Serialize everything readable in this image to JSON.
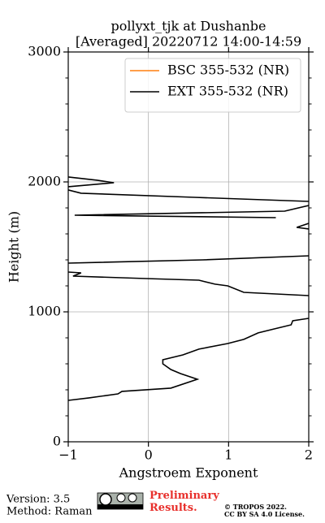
{
  "chart_data": {
    "type": "line",
    "title": "pollyxt_tjk at Dushanbe",
    "subtitle": "[Averaged] 20220712 14:00-14:59",
    "xlabel": "Angstroem Exponent",
    "ylabel": "Height (m)",
    "xlim": [
      -1,
      2
    ],
    "ylim": [
      0,
      3000
    ],
    "xticks": [
      {
        "value": -1,
        "label": "−1"
      },
      0,
      1,
      2
    ],
    "yticks": [
      0,
      1000,
      2000,
      3000
    ],
    "y_minor_ticks": [
      200,
      400,
      600,
      800,
      1200,
      1400,
      1600,
      1800,
      2200,
      2400,
      2600,
      2800
    ],
    "grid": true,
    "legend": "upper right",
    "y": [
      319,
      338,
      369,
      388,
      413,
      481,
      525,
      556,
      600,
      631,
      669,
      713,
      756,
      788,
      838,
      869,
      900,
      931,
      950,
      1040,
      1125,
      1150,
      1200,
      1213,
      1244,
      1256,
      1275,
      1300,
      1306,
      1340,
      1375,
      1400,
      1431,
      1530,
      1638,
      1650,
      1681,
      1700,
      1725,
      1744,
      1775,
      1819,
      1835,
      1850,
      1881,
      1913,
      1938,
      1950,
      1963,
      1994,
      2013,
      2038
    ],
    "series": [
      {
        "name": "BSC 355-532 (NR)",
        "color": "#ff7f0e",
        "values": [
          null,
          null,
          null,
          null,
          null,
          null,
          null,
          null,
          null,
          null,
          null,
          null,
          null,
          null,
          null,
          null,
          null,
          null,
          null,
          null,
          null,
          null,
          null,
          null,
          null,
          null,
          null,
          null,
          null,
          null,
          null,
          null,
          null,
          null,
          null,
          null,
          null,
          null,
          null,
          null,
          null,
          null,
          null,
          null,
          null,
          null,
          null,
          null,
          null,
          null,
          null,
          null
        ]
      },
      {
        "name": "EXT 355-532 (NR)",
        "color": "#000000",
        "values": [
          -1,
          -0.74,
          -0.38,
          -0.33,
          0.28,
          0.61,
          0.4,
          0.28,
          0.18,
          0.18,
          0.43,
          0.63,
          0.99,
          1.19,
          1.37,
          1.57,
          1.78,
          1.8,
          2,
          null,
          2,
          1.19,
          0.99,
          0.83,
          0.63,
          -0.03,
          -0.94,
          -0.84,
          -1,
          null,
          -1,
          0.68,
          2,
          null,
          2,
          1.85,
          2,
          null,
          1.59,
          -0.92,
          1.7,
          2,
          null,
          2,
          0.58,
          -0.84,
          -1,
          null,
          -1,
          -0.43,
          -0.64,
          -1
        ]
      }
    ],
    "footer": {
      "version": "Version: 3.5",
      "method": "Method: Raman",
      "preliminary": "Preliminary Results.",
      "copyright": "© TROPOS 2022.",
      "license": "CC BY SA 4.0 License."
    }
  }
}
